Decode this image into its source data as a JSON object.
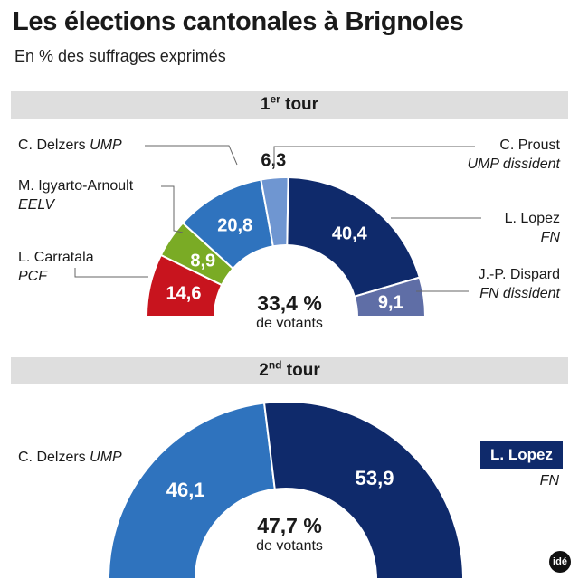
{
  "title": "Les élections cantonales à Brignoles",
  "subtitle": "En % des suffrages exprimés",
  "round1": {
    "label_num": "1",
    "label_sup": "er",
    "label_word": " tour",
    "turnout": "33,4 %",
    "turnout_label": "de votants"
  },
  "round2": {
    "label_num": "2",
    "label_sup": "nd",
    "label_word": " tour",
    "turnout": "47,7 %",
    "turnout_label": "de votants",
    "winner_name": "L. Lopez",
    "winner_party": "FN"
  },
  "logo": "idé",
  "chart_data": [
    {
      "type": "pie",
      "title": "1er tour",
      "unit": "% des suffrages exprimés",
      "slices": [
        {
          "name": "L. Carratala",
          "party": "PCF",
          "value": 14.6,
          "label": "14,6",
          "color": "#c8141e"
        },
        {
          "name": "M. Igyarto-Arnoult",
          "party": "EELV",
          "value": 8.9,
          "label": "8,9",
          "color": "#7aab25"
        },
        {
          "name": "C. Delzers",
          "party": "UMP",
          "value": 20.8,
          "label": "20,8",
          "color": "#2f73be"
        },
        {
          "name": "C. Proust",
          "party": "UMP dissident",
          "value": 6.3,
          "label": "6,3",
          "color": "#6f96d1"
        },
        {
          "name": "L. Lopez",
          "party": "FN",
          "value": 40.4,
          "label": "40,4",
          "color": "#0f2a6b"
        },
        {
          "name": "J.-P. Dispard",
          "party": "FN dissident",
          "value": 9.1,
          "label": "9,1",
          "color": "#5f6ea6"
        }
      ]
    },
    {
      "type": "pie",
      "title": "2nd tour",
      "unit": "% des suffrages exprimés",
      "slices": [
        {
          "name": "C. Delzers",
          "party": "UMP",
          "value": 46.1,
          "label": "46,1",
          "color": "#2f73be"
        },
        {
          "name": "L. Lopez",
          "party": "FN",
          "value": 53.9,
          "label": "53,9",
          "color": "#0f2a6b"
        }
      ]
    }
  ]
}
